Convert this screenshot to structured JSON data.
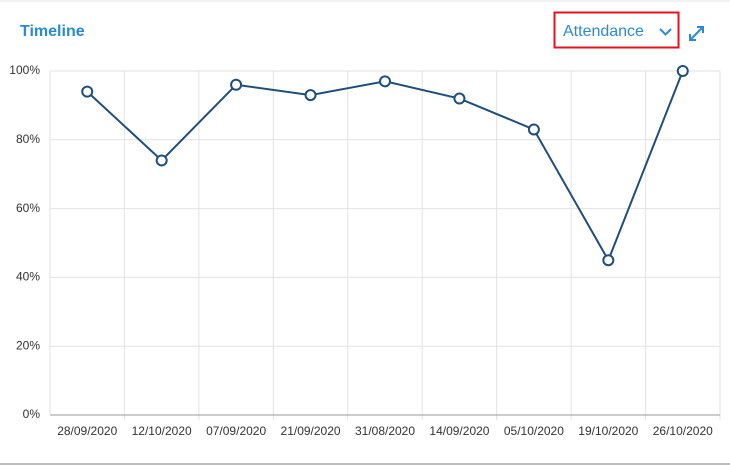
{
  "header": {
    "title": "Timeline",
    "dropdown": "Attendance"
  },
  "chart_data": {
    "type": "line",
    "categories": [
      "28/09/2020",
      "12/10/2020",
      "07/09/2020",
      "21/09/2020",
      "31/08/2020",
      "14/09/2020",
      "05/10/2020",
      "19/10/2020",
      "26/10/2020"
    ],
    "series": [
      {
        "name": "Attendance",
        "color": "#1f4e7a",
        "values": [
          94,
          74,
          96,
          93,
          97,
          92,
          83,
          45,
          100
        ]
      }
    ],
    "ylim": [
      0,
      100
    ],
    "yticks": [
      {
        "value": 0,
        "label": "0%"
      },
      {
        "value": 20,
        "label": "20%"
      },
      {
        "value": 40,
        "label": "40%"
      },
      {
        "value": 60,
        "label": "60%"
      },
      {
        "value": 80,
        "label": "80%"
      },
      {
        "value": 100,
        "label": "100%"
      }
    ],
    "grid": true
  }
}
